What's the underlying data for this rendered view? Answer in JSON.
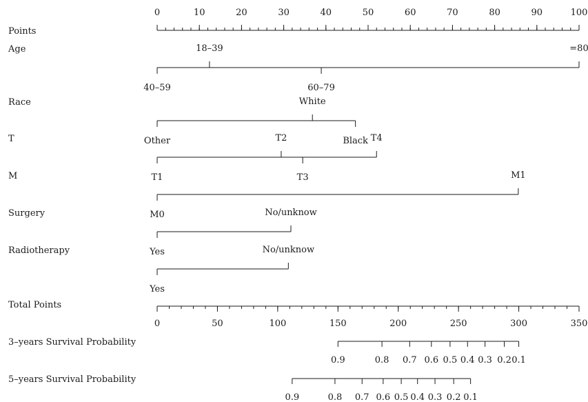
{
  "chart_data": {
    "type": "nomogram",
    "points_axis": {
      "label": "Points",
      "range": [
        0,
        100
      ],
      "major_ticks": [
        0,
        10,
        20,
        30,
        40,
        50,
        60,
        70,
        80,
        90,
        100
      ],
      "minor_step": 2
    },
    "variables": [
      {
        "name": "Age",
        "categories": [
          {
            "label": "40–59",
            "points": 0,
            "side": "below"
          },
          {
            "label": "18–39",
            "points": 12.4,
            "side": "above"
          },
          {
            "label": "60–79",
            "points": 38.9,
            "side": "below"
          },
          {
            "label": "=80",
            "points": 100,
            "side": "above"
          }
        ]
      },
      {
        "name": "Race",
        "categories": [
          {
            "label": "Other",
            "points": 0,
            "side": "below"
          },
          {
            "label": "White",
            "points": 36.8,
            "side": "above"
          },
          {
            "label": "Black",
            "points": 47,
            "side": "below"
          }
        ]
      },
      {
        "name": "T",
        "categories": [
          {
            "label": "T1",
            "points": 0,
            "side": "below"
          },
          {
            "label": "T2",
            "points": 29.4,
            "side": "above"
          },
          {
            "label": "T3",
            "points": 34.5,
            "side": "below"
          },
          {
            "label": "T4",
            "points": 52,
            "side": "above"
          }
        ]
      },
      {
        "name": "M",
        "categories": [
          {
            "label": "M0",
            "points": 0,
            "side": "below"
          },
          {
            "label": "M1",
            "points": 85.6,
            "side": "above"
          }
        ]
      },
      {
        "name": "Surgery",
        "categories": [
          {
            "label": "Yes",
            "points": 0,
            "side": "below"
          },
          {
            "label": "No/unknow",
            "points": 31.7,
            "side": "above"
          }
        ]
      },
      {
        "name": "Radiotherapy",
        "categories": [
          {
            "label": "Yes",
            "points": 0,
            "side": "below"
          },
          {
            "label": "No/unknow",
            "points": 31.1,
            "side": "above"
          }
        ]
      }
    ],
    "total_points_axis": {
      "label": "Total Points",
      "range": [
        0,
        350
      ],
      "major_ticks": [
        0,
        50,
        100,
        150,
        200,
        250,
        300,
        350
      ],
      "minor_step": 10
    },
    "probability_axes": [
      {
        "label": "3–years Survival Probability",
        "ticks": [
          {
            "label": "0.9",
            "total": 150
          },
          {
            "label": "0.8",
            "total": 186.5
          },
          {
            "label": "0.7",
            "total": 209.5
          },
          {
            "label": "0.6",
            "total": 227.5
          },
          {
            "label": "0.5",
            "total": 243
          },
          {
            "label": "0.4",
            "total": 257.5
          },
          {
            "label": "0.3",
            "total": 272
          },
          {
            "label": "0.2",
            "total": 288
          },
          {
            "label": "0.1",
            "total": 300
          }
        ]
      },
      {
        "label": "5–years Survival Probability",
        "ticks": [
          {
            "label": "0.9",
            "total": 112
          },
          {
            "label": "0.8",
            "total": 147.5
          },
          {
            "label": "0.7",
            "total": 170
          },
          {
            "label": "0.6",
            "total": 187.5
          },
          {
            "label": "0.5",
            "total": 202.5
          },
          {
            "label": "0.4",
            "total": 216
          },
          {
            "label": "0.3",
            "total": 230.5
          },
          {
            "label": "0.2",
            "total": 246
          },
          {
            "label": "0.1",
            "total": 260
          }
        ]
      }
    ]
  }
}
